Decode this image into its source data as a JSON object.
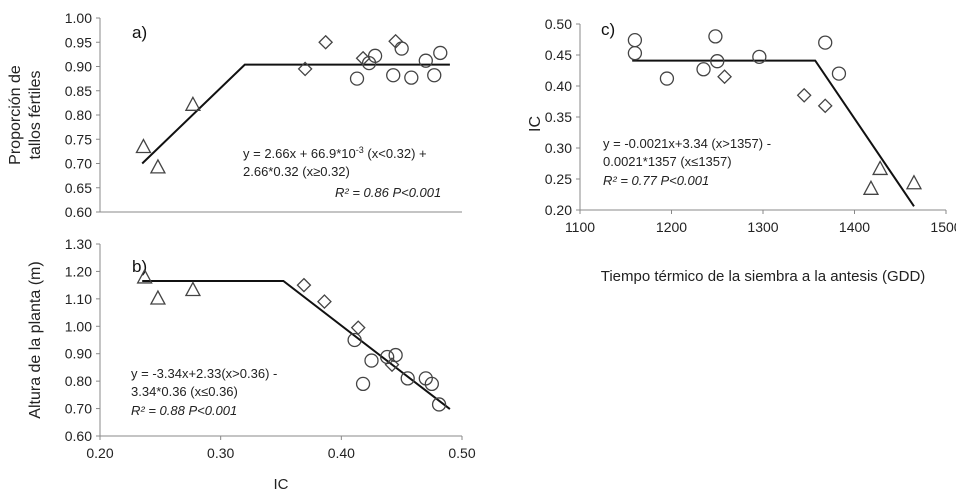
{
  "chart_data": [
    {
      "type": "scatter",
      "panel_label": "a)",
      "xlabel": "",
      "ylabel_lines": [
        "Proporción de",
        "tallos fértiles"
      ],
      "xlim": [
        0.2,
        0.5
      ],
      "ylim": [
        0.6,
        1.0
      ],
      "yticks": [
        "0.60",
        "0.65",
        "0.70",
        "0.75",
        "0.80",
        "0.85",
        "0.90",
        "0.95",
        "1.00"
      ],
      "series": [
        {
          "marker": "triangle",
          "points": [
            [
              0.236,
              0.735
            ],
            [
              0.248,
              0.693
            ],
            [
              0.277,
              0.822
            ]
          ]
        },
        {
          "marker": "diamond",
          "points": [
            [
              0.37,
              0.895
            ],
            [
              0.387,
              0.95
            ],
            [
              0.418,
              0.917
            ],
            [
              0.445,
              0.952
            ]
          ]
        },
        {
          "marker": "circle",
          "points": [
            [
              0.413,
              0.875
            ],
            [
              0.423,
              0.907
            ],
            [
              0.428,
              0.922
            ],
            [
              0.443,
              0.882
            ],
            [
              0.45,
              0.937
            ],
            [
              0.458,
              0.877
            ],
            [
              0.47,
              0.912
            ],
            [
              0.477,
              0.882
            ],
            [
              0.482,
              0.928
            ]
          ]
        }
      ],
      "fit_line": [
        [
          0.235,
          0.7
        ],
        [
          0.32,
          0.904
        ],
        [
          0.49,
          0.904
        ]
      ],
      "equation_lines": [
        "y = 2.66x + 66.9*10-3 (x<0.32) +",
        "2.66*0.32 (x≥0.32)"
      ],
      "r2_text": "R² = 0.86 P<0.001"
    },
    {
      "type": "scatter",
      "panel_label": "b)",
      "xlabel": "IC",
      "ylabel_lines": [
        "Altura de la planta (m)"
      ],
      "xlim": [
        0.2,
        0.5
      ],
      "ylim": [
        0.6,
        1.3
      ],
      "xticks": [
        "0.20",
        "0.30",
        "0.40",
        "0.50"
      ],
      "yticks": [
        "0.60",
        "0.70",
        "0.80",
        "0.90",
        "1.00",
        "1.10",
        "1.20",
        "1.30"
      ],
      "series": [
        {
          "marker": "triangle",
          "points": [
            [
              0.237,
              1.18
            ],
            [
              0.248,
              1.103
            ],
            [
              0.277,
              1.134
            ]
          ]
        },
        {
          "marker": "diamond",
          "points": [
            [
              0.369,
              1.15
            ],
            [
              0.386,
              1.09
            ],
            [
              0.414,
              0.995
            ],
            [
              0.442,
              0.86
            ]
          ]
        },
        {
          "marker": "circle",
          "points": [
            [
              0.411,
              0.95
            ],
            [
              0.418,
              0.79
            ],
            [
              0.425,
              0.875
            ],
            [
              0.438,
              0.888
            ],
            [
              0.445,
              0.895
            ],
            [
              0.455,
              0.81
            ],
            [
              0.47,
              0.81
            ],
            [
              0.475,
              0.79
            ],
            [
              0.481,
              0.715
            ]
          ]
        }
      ],
      "fit_line": [
        [
          0.235,
          1.165
        ],
        [
          0.352,
          1.165
        ],
        [
          0.49,
          0.698
        ]
      ],
      "equation_lines": [
        "y = -3.34x+2.33(x>0.36) -",
        "3.34*0.36 (x≤0.36)"
      ],
      "r2_text": "R² = 0.88 P<0.001"
    },
    {
      "type": "scatter",
      "panel_label": "c)",
      "xlabel": "Tiempo térmico de la siembra a la antesis (GDD)",
      "ylabel_lines": [
        "IC"
      ],
      "xlim": [
        1100,
        1500
      ],
      "ylim": [
        0.2,
        0.5
      ],
      "xticks": [
        "1100",
        "1200",
        "1300",
        "1400",
        "1500"
      ],
      "yticks": [
        "0.20",
        "0.25",
        "0.30",
        "0.35",
        "0.40",
        "0.45",
        "0.50"
      ],
      "series": [
        {
          "marker": "circle",
          "points": [
            [
              1160,
              0.474
            ],
            [
              1160,
              0.453
            ],
            [
              1195,
              0.412
            ],
            [
              1235,
              0.427
            ],
            [
              1248,
              0.48
            ],
            [
              1250,
              0.44
            ],
            [
              1296,
              0.447
            ],
            [
              1368,
              0.47
            ],
            [
              1383,
              0.42
            ]
          ]
        },
        {
          "marker": "diamond",
          "points": [
            [
              1258,
              0.415
            ],
            [
              1345,
              0.385
            ],
            [
              1368,
              0.368
            ]
          ]
        },
        {
          "marker": "triangle",
          "points": [
            [
              1418,
              0.235
            ],
            [
              1428,
              0.267
            ],
            [
              1465,
              0.244
            ]
          ]
        }
      ],
      "fit_line": [
        [
          1157,
          0.441
        ],
        [
          1357,
          0.441
        ],
        [
          1465,
          0.206
        ]
      ],
      "equation_lines": [
        "y = -0.0021x+3.34 (x>1357) -",
        "0.0021*1357 (x≤1357)"
      ],
      "r2_text": "R² = 0.77 P<0.001"
    }
  ]
}
